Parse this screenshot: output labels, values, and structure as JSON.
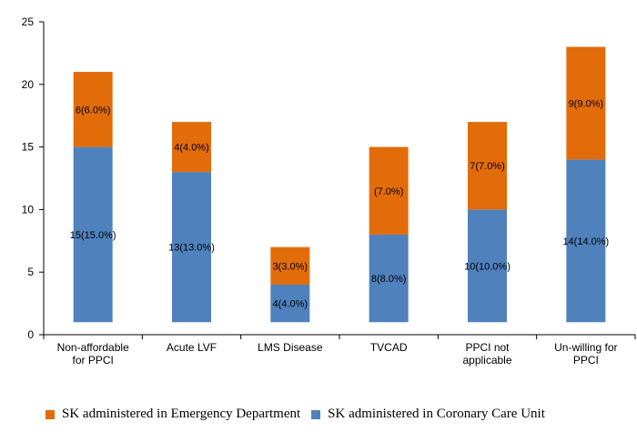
{
  "chart_data": {
    "type": "bar",
    "stacked": true,
    "categories": [
      [
        "Non-affordable",
        "for PPCI"
      ],
      [
        "Acute LVF"
      ],
      [
        "LMS Disease"
      ],
      [
        "TVCAD"
      ],
      [
        "PPCI not",
        "applicable"
      ],
      [
        "Un-willing for",
        "PPCI"
      ]
    ],
    "ylim": [
      0,
      25
    ],
    "yticks": [
      0,
      5,
      10,
      15,
      20,
      25
    ],
    "bar_base": 1,
    "series": [
      {
        "name": "SK administered in Coronary Care Unit",
        "color": "#4f81bd",
        "values": [
          15,
          13,
          4,
          8,
          10,
          14
        ],
        "labels": [
          "15(15.0%)",
          "13(13.0%)",
          "4(4.0%)",
          "8(8.0%)",
          "10(10.0%)",
          "14(14.0%)"
        ]
      },
      {
        "name": "SK administered in Emergency Department",
        "color": "#e36c0a",
        "values": [
          6,
          4,
          3,
          7,
          7,
          9
        ],
        "labels": [
          "6(6.0%)",
          "4(4.0%)",
          "3(3.0%)",
          "(7.0%)",
          "7(7.0%)",
          "9(9.0%)"
        ]
      }
    ],
    "legend": {
      "position": "bottom",
      "order": [
        1,
        0
      ]
    }
  }
}
